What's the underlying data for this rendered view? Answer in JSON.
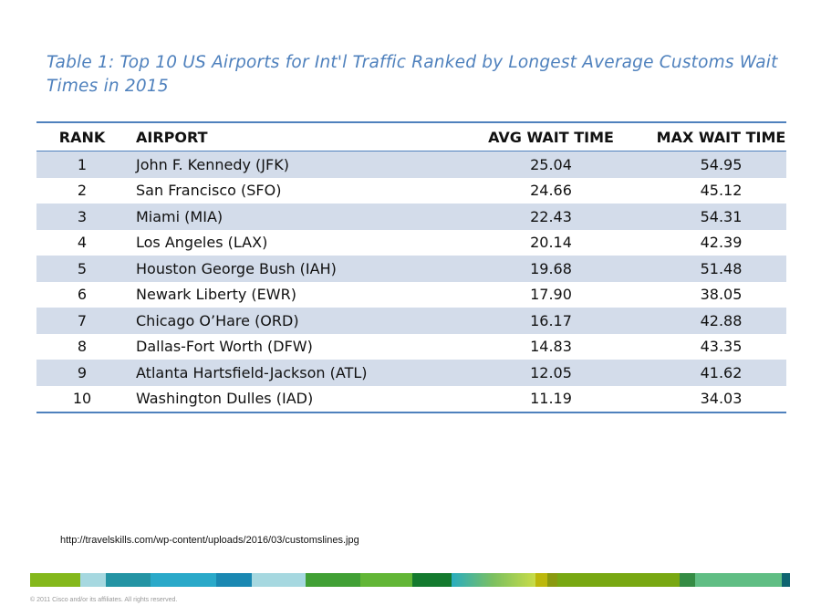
{
  "title": "Table 1: Top 10 US Airports for Int'l Traffic Ranked by Longest Average Customs Wait Times in 2015",
  "table": {
    "headers": [
      "RANK",
      "AIRPORT",
      "AVG WAIT TIME",
      "MAX WAIT TIME"
    ],
    "rows": [
      [
        "1",
        "John F. Kennedy (JFK)",
        "25.04",
        "54.95"
      ],
      [
        "2",
        "San Francisco (SFO)",
        "24.66",
        "45.12"
      ],
      [
        "3",
        "Miami (MIA)",
        "22.43",
        "54.31"
      ],
      [
        "4",
        "Los Angeles (LAX)",
        "20.14",
        "42.39"
      ],
      [
        "5",
        "Houston George Bush (IAH)",
        "19.68",
        "51.48"
      ],
      [
        "6",
        "Newark Liberty (EWR)",
        "17.90",
        "38.05"
      ],
      [
        "7",
        "Chicago O’Hare (ORD)",
        "16.17",
        "42.88"
      ],
      [
        "8",
        "Dallas-Fort Worth (DFW)",
        "14.83",
        "43.35"
      ],
      [
        "9",
        "Atlanta Hartsfield-Jackson (ATL)",
        "12.05",
        "41.62"
      ],
      [
        "10",
        "Washington Dulles (IAD)",
        "11.19",
        "34.03"
      ]
    ]
  },
  "source": "http://travelskills.com/wp-content/uploads/2016/03/customslines.jpg",
  "copyright": "© 2011 Cisco and/or its affiliates. All rights reserved.",
  "colors": {
    "title": "#4f81bd",
    "row_shade": "#d3dcea",
    "footer_bar": [
      "#84b81c",
      "#a6d8e0",
      "#2494a4",
      "#2aa9c9",
      "#1a88b2",
      "#a6d8e0",
      "#41a035",
      "#62b636",
      "#147a2e",
      "gradient",
      "#bcb80c",
      "#8a9a10",
      "#78a812",
      "#358c44",
      "#60be84",
      "#0e6470"
    ]
  }
}
